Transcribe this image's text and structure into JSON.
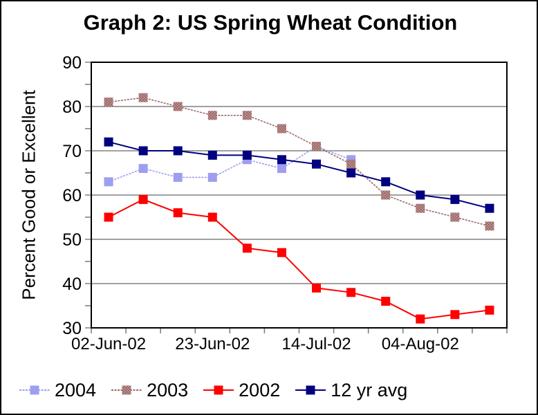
{
  "window": {
    "background": "#ffffff",
    "border_color": "#000000"
  },
  "chart_data": {
    "type": "line",
    "title": "Graph 2: US Spring Wheat Condition",
    "ylabel": "Percent Good or Excellent",
    "xlabel": "",
    "ylim": [
      30,
      90
    ],
    "y_major_step": 10,
    "y_minor_step": 5,
    "grid": "horizontal-major",
    "y_tick_labels": [
      "90",
      "80",
      "70",
      "60",
      "50",
      "40",
      "30"
    ],
    "n_points": 12,
    "x_tick_labels": [
      "02-Jun-02",
      "23-Jun-02",
      "14-Jul-02",
      "04-Aug-02"
    ],
    "x_tick_label_indices": [
      0,
      3,
      6,
      9
    ],
    "legend_position": "bottom",
    "colors": {
      "gridline": "#808080",
      "axis": "#000000",
      "text": "#000000"
    },
    "series": [
      {
        "name": "2004",
        "color": "#9E9EF0",
        "line_style": "dithered",
        "marker": "square",
        "values": [
          63,
          66,
          64,
          64,
          68,
          66,
          71,
          68
        ]
      },
      {
        "name": "2003",
        "color": "#9C6969",
        "speckle_color": "#CBA3A3",
        "style": "speckled",
        "line_style": "dithered",
        "marker": "square",
        "values": [
          81,
          82,
          80,
          78,
          78,
          75,
          71,
          67,
          60,
          57,
          55,
          53
        ]
      },
      {
        "name": "2002",
        "color": "#FF0000",
        "line_style": "solid",
        "marker": "square",
        "values": [
          55,
          59,
          56,
          55,
          48,
          47,
          39,
          38,
          36,
          32,
          33,
          34
        ]
      },
      {
        "name": "12 yr avg",
        "color": "#000080",
        "line_style": "solid",
        "marker": "square",
        "values": [
          72,
          70,
          70,
          69,
          69,
          68,
          67,
          65,
          63,
          60,
          59,
          57
        ]
      }
    ]
  }
}
